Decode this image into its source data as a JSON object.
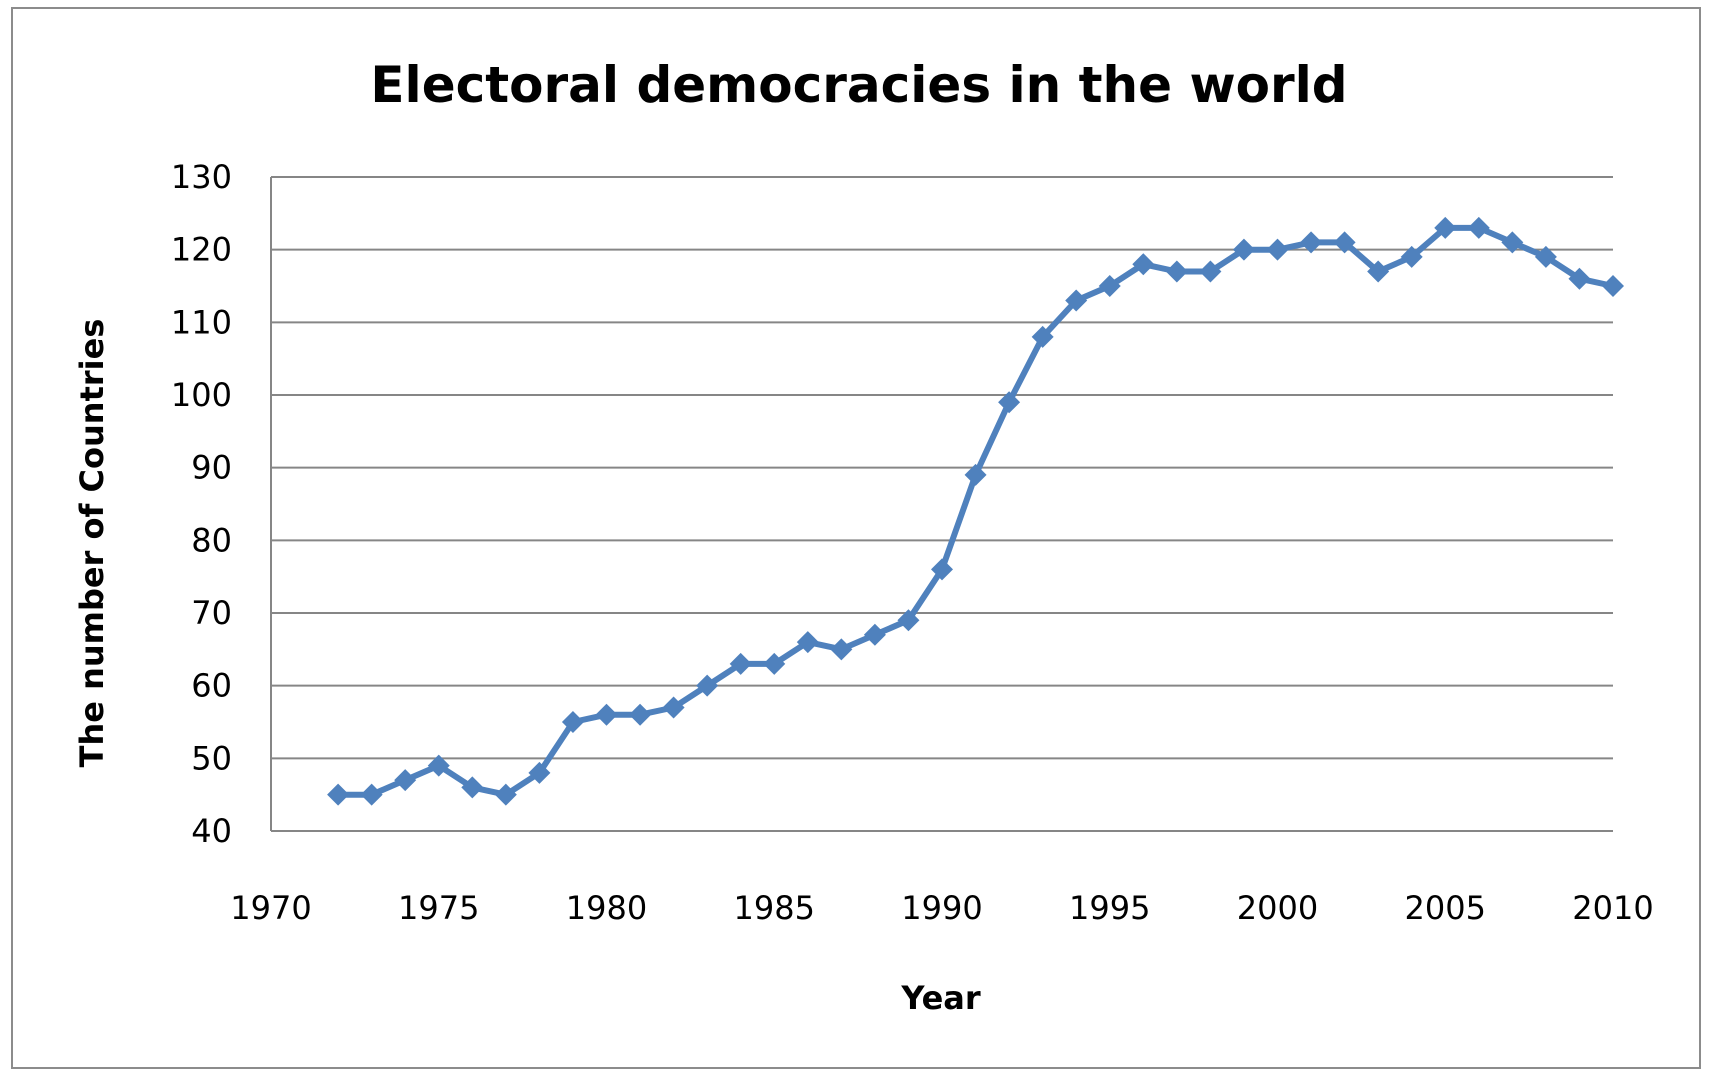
{
  "chart_data": {
    "type": "line",
    "title": "Electoral democracies in the world",
    "xlabel": "Year",
    "ylabel": "The number of Countries",
    "xlim": [
      1970,
      2010
    ],
    "ylim": [
      40,
      130
    ],
    "x_ticks": [
      "1970",
      "1975",
      "1980",
      "1985",
      "1990",
      "1995",
      "2000",
      "2005",
      "2010"
    ],
    "y_ticks": [
      "40",
      "50",
      "60",
      "70",
      "80",
      "90",
      "100",
      "110",
      "120",
      "130"
    ],
    "grid": "horizontal",
    "legend": "none",
    "series": [
      {
        "color": "#4f81bd",
        "marker": "diamond",
        "points": [
          {
            "x": 1972,
            "y": 45
          },
          {
            "x": 1973,
            "y": 45
          },
          {
            "x": 1974,
            "y": 47
          },
          {
            "x": 1975,
            "y": 49
          },
          {
            "x": 1976,
            "y": 46
          },
          {
            "x": 1977,
            "y": 45
          },
          {
            "x": 1978,
            "y": 48
          },
          {
            "x": 1979,
            "y": 55
          },
          {
            "x": 1980,
            "y": 56
          },
          {
            "x": 1981,
            "y": 56
          },
          {
            "x": 1982,
            "y": 57
          },
          {
            "x": 1983,
            "y": 60
          },
          {
            "x": 1984,
            "y": 63
          },
          {
            "x": 1985,
            "y": 63
          },
          {
            "x": 1986,
            "y": 66
          },
          {
            "x": 1987,
            "y": 65
          },
          {
            "x": 1988,
            "y": 67
          },
          {
            "x": 1989,
            "y": 69
          },
          {
            "x": 1990,
            "y": 76
          },
          {
            "x": 1991,
            "y": 89
          },
          {
            "x": 1992,
            "y": 99
          },
          {
            "x": 1993,
            "y": 108
          },
          {
            "x": 1994,
            "y": 113
          },
          {
            "x": 1995,
            "y": 115
          },
          {
            "x": 1996,
            "y": 118
          },
          {
            "x": 1997,
            "y": 117
          },
          {
            "x": 1998,
            "y": 117
          },
          {
            "x": 1999,
            "y": 120
          },
          {
            "x": 2000,
            "y": 120
          },
          {
            "x": 2001,
            "y": 121
          },
          {
            "x": 2002,
            "y": 121
          },
          {
            "x": 2003,
            "y": 117
          },
          {
            "x": 2004,
            "y": 119
          },
          {
            "x": 2005,
            "y": 123
          },
          {
            "x": 2006,
            "y": 123
          },
          {
            "x": 2007,
            "y": 121
          },
          {
            "x": 2008,
            "y": 119
          },
          {
            "x": 2009,
            "y": 116
          },
          {
            "x": 2010,
            "y": 115
          }
        ]
      }
    ]
  }
}
